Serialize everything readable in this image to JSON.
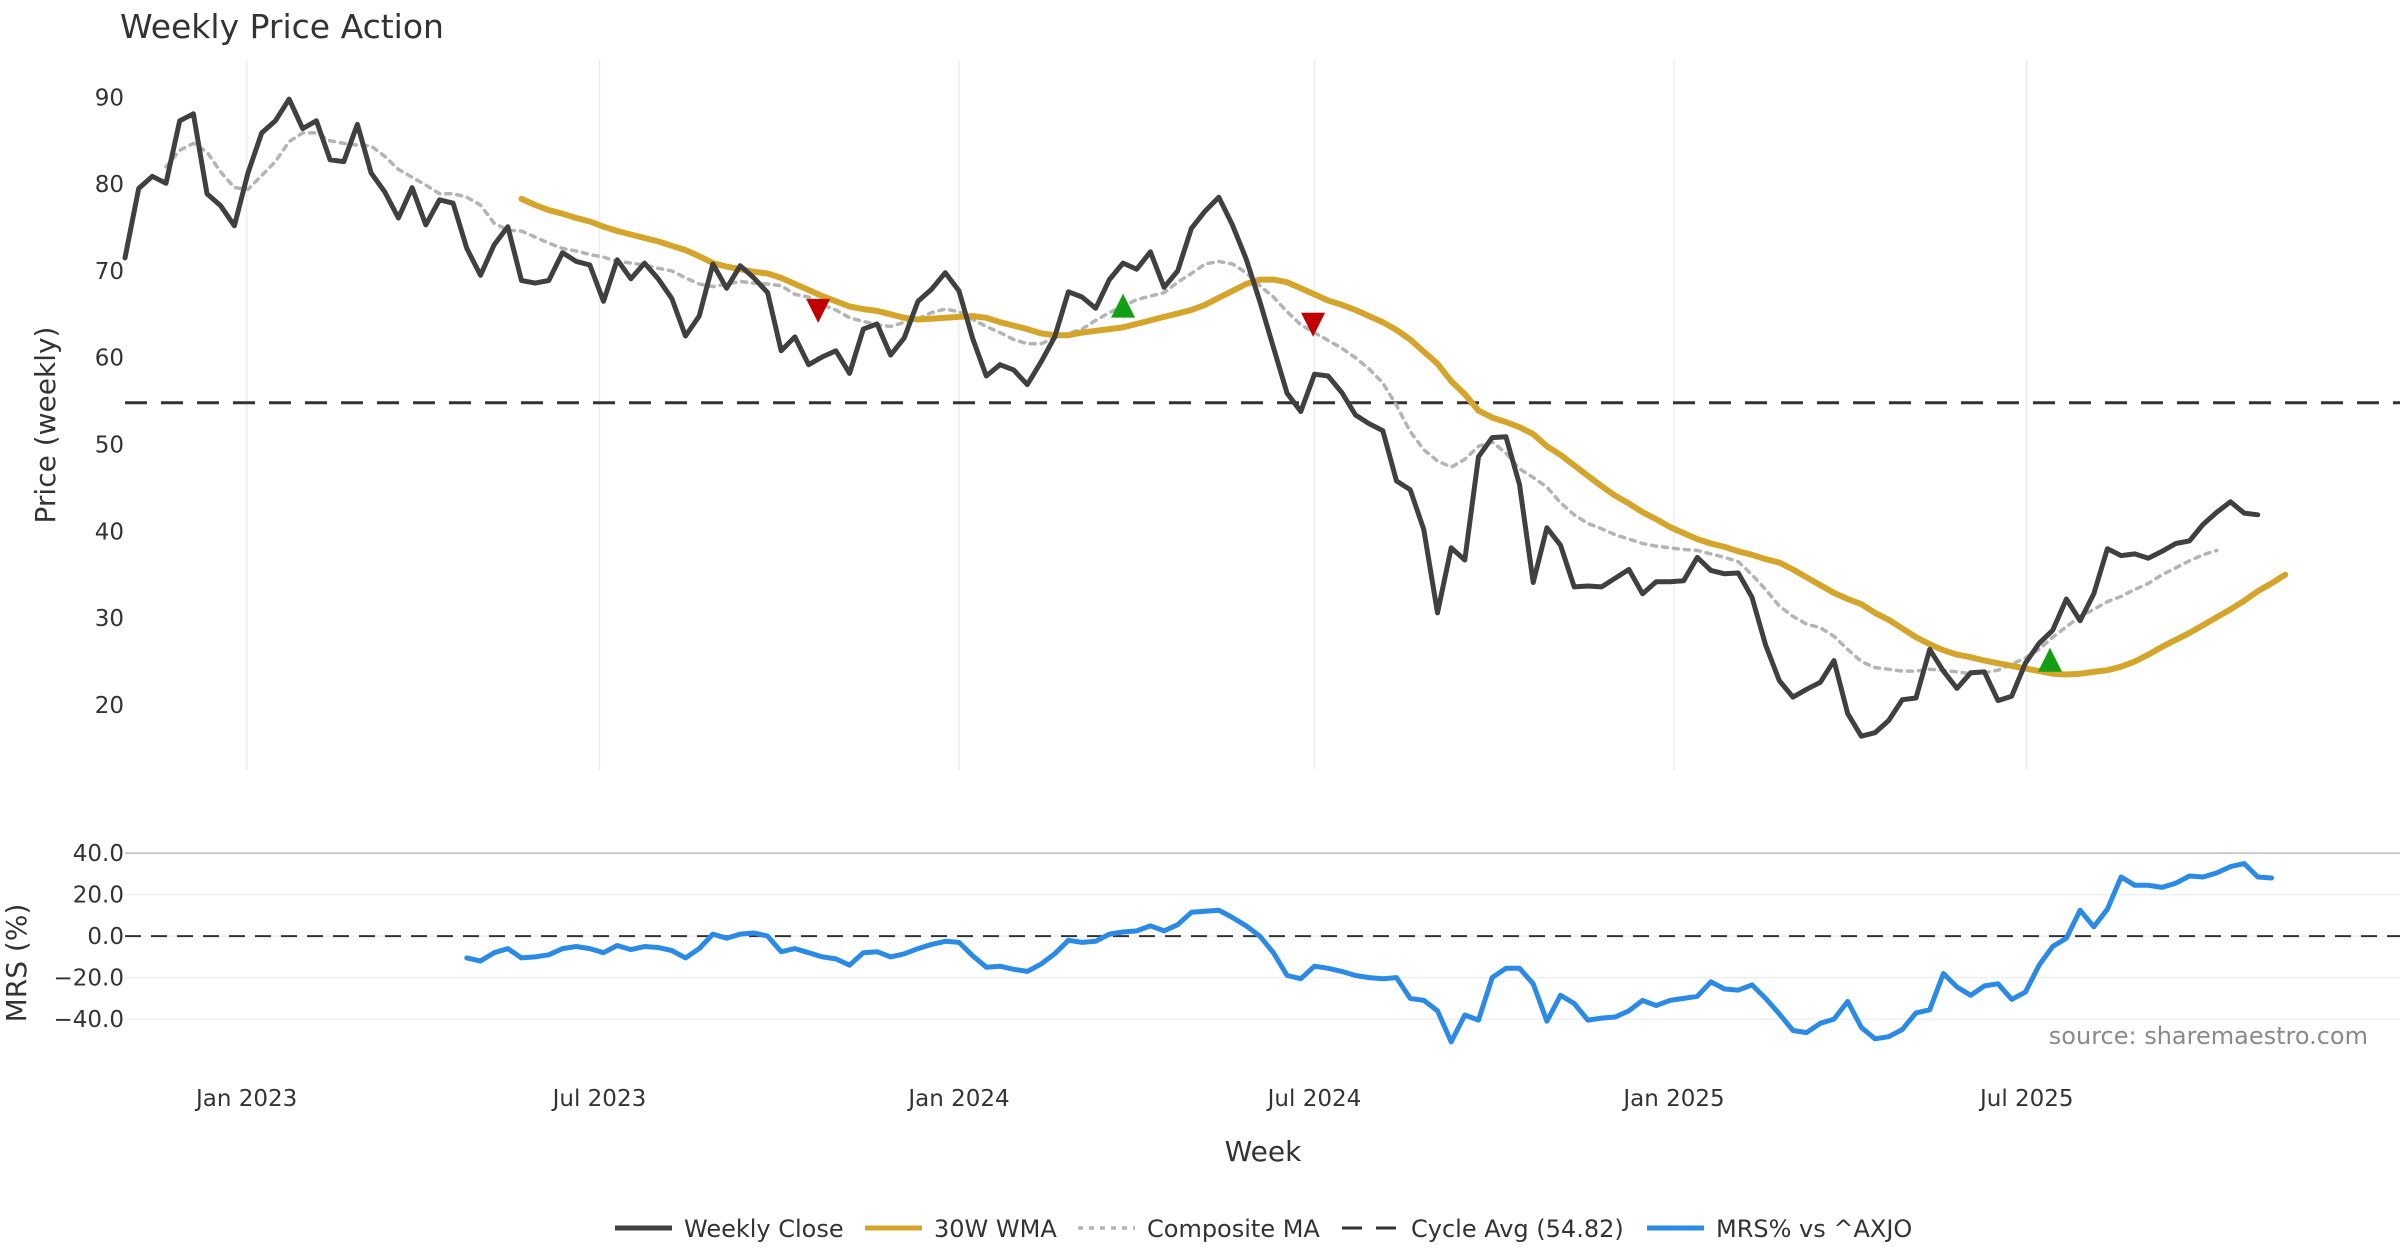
{
  "chart_data": [
    {
      "type": "line",
      "title": "Weekly Price Action",
      "ylabel": "Price (weekly)",
      "xlabel": "Week",
      "ylim": [
        12.5,
        92.0
      ],
      "yticks": [
        20,
        30,
        40,
        50,
        60,
        70,
        80,
        90
      ],
      "x_range_weeks": [
        0,
        166.4
      ],
      "x_start_date": "2022-10-17",
      "xticks": [
        {
          "week": 8.9,
          "label": "Jan 2023"
        },
        {
          "week": 34.7,
          "label": "Jul 2023"
        },
        {
          "week": 61.0,
          "label": "Jan 2024"
        },
        {
          "week": 87.0,
          "label": "Jul 2024"
        },
        {
          "week": 113.3,
          "label": "Jan 2025"
        },
        {
          "week": 139.1,
          "label": "Jul 2025"
        }
      ],
      "grid": "vertical",
      "series": [
        {
          "name": "Weekly Close",
          "color": "#404040",
          "start_week": 0,
          "values": [
            71.5,
            79.5,
            80.9,
            80.1,
            87.3,
            88.1,
            78.9,
            77.5,
            75.2,
            81.3,
            85.9,
            87.3,
            89.8,
            86.4,
            87.3,
            82.8,
            82.6,
            86.9,
            81.3,
            79.1,
            76.1,
            79.6,
            75.3,
            78.2,
            77.8,
            72.6,
            69.5,
            73.0,
            75.1,
            68.9,
            68.6,
            68.9,
            72.1,
            71.1,
            70.7,
            66.5,
            71.3,
            69.1,
            70.9,
            69.1,
            66.8,
            62.5,
            64.8,
            70.8,
            68.0,
            70.6,
            69.2,
            67.5,
            60.8,
            62.4,
            59.2,
            60.1,
            60.8,
            58.2,
            63.3,
            63.9,
            60.3,
            62.3,
            66.5,
            67.9,
            69.8,
            67.7,
            62.2,
            57.9,
            59.2,
            58.6,
            56.9,
            59.5,
            62.4,
            67.6,
            67.0,
            65.7,
            69.0,
            70.9,
            70.2,
            72.2,
            68.1,
            70.0,
            74.9,
            76.9,
            78.5,
            75.3,
            71.4,
            66.5,
            61.2,
            55.9,
            53.8,
            58.1,
            57.9,
            56.0,
            53.4,
            52.4,
            51.6,
            45.8,
            44.8,
            40.2,
            30.6,
            38.1,
            36.7,
            48.6,
            50.8,
            50.9,
            45.4,
            34.1,
            40.4,
            38.4,
            33.6,
            33.7,
            33.6,
            34.6,
            35.6,
            32.8,
            34.2,
            34.2,
            34.3,
            37.0,
            35.5,
            35.1,
            35.2,
            32.4,
            26.9,
            22.8,
            20.9,
            21.8,
            22.6,
            25.1,
            19.0,
            16.4,
            16.8,
            18.2,
            20.6,
            20.8,
            26.4,
            23.9,
            21.9,
            23.7,
            23.8,
            20.5,
            21.0,
            24.8,
            27.1,
            28.6,
            32.2,
            29.7,
            32.8,
            38.0,
            37.2,
            37.4,
            36.9,
            37.7,
            38.6,
            38.9,
            40.8,
            42.2,
            43.4,
            42.1,
            41.9
          ]
        },
        {
          "name": "30W WMA",
          "color": "#d4a52a",
          "start_week": 29,
          "values": [
            78.3,
            77.6,
            77.0,
            76.6,
            76.1,
            75.7,
            75.1,
            74.6,
            74.2,
            73.8,
            73.4,
            72.9,
            72.4,
            71.7,
            70.9,
            70.5,
            70.2,
            69.9,
            69.7,
            69.2,
            68.5,
            67.8,
            67.1,
            66.5,
            65.9,
            65.6,
            65.4,
            65.0,
            64.6,
            64.4,
            64.5,
            64.6,
            64.7,
            64.8,
            64.6,
            64.1,
            63.7,
            63.3,
            62.8,
            62.6,
            62.6,
            62.9,
            63.1,
            63.3,
            63.5,
            63.9,
            64.3,
            64.7,
            65.1,
            65.5,
            66.1,
            66.9,
            67.7,
            68.5,
            69.0,
            69.0,
            68.7,
            68.0,
            67.3,
            66.6,
            66.1,
            65.5,
            64.8,
            64.1,
            63.2,
            62.1,
            60.7,
            59.3,
            57.3,
            55.8,
            53.9,
            53.1,
            52.6,
            52.0,
            51.2,
            49.8,
            48.8,
            47.6,
            46.4,
            45.2,
            44.1,
            43.2,
            42.2,
            41.4,
            40.5,
            39.8,
            39.1,
            38.6,
            38.2,
            37.7,
            37.3,
            36.8,
            36.4,
            35.6,
            34.7,
            33.8,
            32.9,
            32.2,
            31.6,
            30.6,
            29.8,
            28.8,
            27.8,
            27.0,
            26.3,
            25.8,
            25.5,
            25.1,
            24.8,
            24.5,
            24.2,
            23.9,
            23.6,
            23.5,
            23.6,
            23.8,
            24.0,
            24.4,
            25.0,
            25.8,
            26.7,
            27.5,
            28.3,
            29.2,
            30.1,
            31.0,
            32.0,
            33.1,
            34.0,
            35.0
          ]
        },
        {
          "name": "Composite MA",
          "color": "#b4b4b4",
          "start_week": 3,
          "values": [
            82.0,
            83.9,
            84.7,
            83.7,
            81.4,
            79.6,
            79.4,
            81.0,
            82.6,
            84.9,
            85.9,
            85.9,
            85.0,
            84.7,
            84.5,
            84.4,
            83.2,
            81.7,
            80.8,
            79.9,
            78.9,
            78.9,
            78.5,
            77.6,
            75.5,
            74.7,
            74.6,
            73.9,
            73.2,
            72.6,
            72.3,
            71.9,
            71.6,
            71.1,
            70.9,
            70.7,
            70.3,
            70.0,
            69.2,
            68.5,
            68.2,
            68.5,
            68.8,
            68.6,
            68.5,
            68.3,
            67.3,
            67.0,
            66.1,
            65.5,
            64.6,
            64.2,
            63.8,
            63.6,
            64.1,
            64.5,
            65.2,
            65.6,
            65.3,
            64.4,
            63.6,
            62.9,
            62.1,
            61.6,
            61.6,
            62.3,
            62.8,
            63.3,
            64.3,
            65.2,
            65.9,
            66.7,
            67.1,
            67.5,
            68.7,
            69.7,
            70.8,
            71.1,
            70.8,
            69.8,
            68.3,
            67.0,
            65.3,
            63.8,
            62.9,
            62.0,
            61.1,
            60.0,
            58.7,
            57.1,
            54.5,
            51.5,
            49.4,
            48.1,
            47.4,
            48.3,
            49.8,
            50.3,
            49.0,
            47.2,
            46.2,
            45.1,
            43.3,
            41.9,
            40.9,
            40.3,
            39.6,
            39.1,
            38.6,
            38.3,
            38.1,
            37.9,
            37.8,
            37.4,
            37.0,
            36.5,
            35.0,
            33.3,
            31.4,
            30.2,
            29.3,
            28.9,
            27.9,
            26.4,
            25.0,
            24.3,
            24.1,
            23.9,
            23.9,
            24.1,
            24.0,
            23.8,
            23.6,
            23.7,
            24.0,
            24.7,
            25.4,
            26.4,
            27.8,
            29.0,
            30.2,
            31.0,
            31.9,
            32.5,
            33.3,
            34.0,
            35.0,
            35.8,
            36.6,
            37.3,
            37.8
          ]
        },
        {
          "name": "Cycle Avg (54.82)",
          "color": "#333333",
          "constant": 54.82
        }
      ],
      "markers": [
        {
          "type": "sell",
          "week": 50.7,
          "value": 65.4,
          "color": "#c00000"
        },
        {
          "type": "buy",
          "week": 73.0,
          "value": 66.0,
          "color": "#12a012"
        },
        {
          "type": "sell",
          "week": 86.9,
          "value": 63.8,
          "color": "#c00000"
        },
        {
          "type": "buy",
          "week": 140.8,
          "value": 25.2,
          "color": "#12a012"
        }
      ]
    },
    {
      "type": "line",
      "ylabel": "MRS (%)",
      "ylim": [
        -52,
        42
      ],
      "yticks": [
        "40.0",
        "20.0",
        "0.0",
        "−20.0",
        "−40.0"
      ],
      "ytick_values": [
        40,
        20,
        0,
        -20,
        -40
      ],
      "series": [
        {
          "name": "MRS% vs ^AXJO",
          "color": "#2a8ae6",
          "start_week": 25,
          "values": [
            -10.5,
            -12.0,
            -8.0,
            -6.0,
            -10.5,
            -10.0,
            -9.0,
            -6.0,
            -5.0,
            -6.0,
            -8.0,
            -4.5,
            -6.5,
            -5.0,
            -5.5,
            -7.0,
            -10.5,
            -6.0,
            1.0,
            -1.0,
            1.0,
            1.5,
            0.0,
            -7.5,
            -6.0,
            -8.0,
            -10.0,
            -11.0,
            -14.0,
            -8.0,
            -7.5,
            -10.0,
            -8.5,
            -6.0,
            -4.0,
            -2.5,
            -3.0,
            -9.5,
            -15.0,
            -14.5,
            -16.0,
            -17.0,
            -13.5,
            -8.5,
            -2.0,
            -3.0,
            -2.5,
            1.0,
            2.0,
            2.5,
            5.0,
            2.5,
            5.5,
            11.5,
            12.0,
            12.5,
            9.0,
            5.0,
            0.0,
            -8.0,
            -19.0,
            -20.5,
            -14.5,
            -15.5,
            -17.0,
            -19.0,
            -20.0,
            -20.5,
            -20.0,
            -30.0,
            -31.0,
            -36.0,
            -51.0,
            -38.0,
            -40.5,
            -20.0,
            -15.5,
            -15.5,
            -23.0,
            -41.0,
            -28.5,
            -32.5,
            -40.5,
            -39.5,
            -39.0,
            -36.0,
            -31.0,
            -33.5,
            -31.0,
            -30.0,
            -29.0,
            -22.0,
            -25.5,
            -26.0,
            -23.5,
            -30.0,
            -37.5,
            -45.5,
            -46.5,
            -42.0,
            -40.0,
            -31.5,
            -44.0,
            -49.5,
            -48.5,
            -45.0,
            -37.0,
            -35.5,
            -18.0,
            -24.5,
            -28.5,
            -24.0,
            -23.0,
            -30.5,
            -27.0,
            -14.0,
            -5.0,
            -1.0,
            12.5,
            4.5,
            13.0,
            28.5,
            24.5,
            24.5,
            23.5,
            25.5,
            29.0,
            28.5,
            30.5,
            33.5,
            35.0,
            28.5,
            28.0
          ]
        },
        {
          "name": "zero",
          "color": "#333333",
          "constant": 0
        }
      ]
    }
  ],
  "xlabel": "Week",
  "source_note": "source: sharemaestro.com",
  "legend": [
    {
      "label": "Weekly Close",
      "style": "solid",
      "color": "#404040"
    },
    {
      "label": "30W WMA",
      "style": "solid",
      "color": "#d4a52a"
    },
    {
      "label": "Composite MA",
      "style": "dotted",
      "color": "#b4b4b4"
    },
    {
      "label": "Cycle Avg (54.82)",
      "style": "dashed",
      "color": "#333333"
    },
    {
      "label": "MRS% vs ^AXJO",
      "style": "solid",
      "color": "#2a8ae6"
    }
  ]
}
